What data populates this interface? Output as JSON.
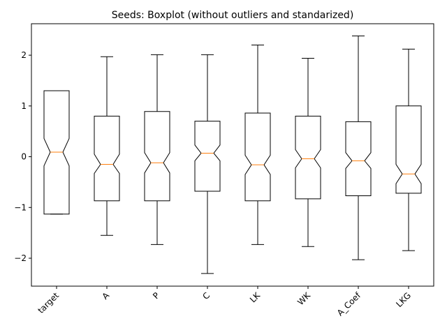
{
  "chart_data": {
    "type": "boxplot",
    "title": "Seeds: Boxplot (without outliers and standarized)",
    "xlabel": "",
    "ylabel": "",
    "notched": true,
    "show_outliers": false,
    "ylim": [
      -2.55,
      2.62
    ],
    "yticks": [
      -2,
      -1,
      0,
      1,
      2
    ],
    "ytick_labels": [
      "−2",
      "−1",
      "0",
      "1",
      "2"
    ],
    "xtick_rotation": 45,
    "categories": [
      "target",
      "A",
      "P",
      "C",
      "LK",
      "WK",
      "A_Coef",
      "LKG"
    ],
    "boxes": [
      {
        "whislo": -1.13,
        "q1": -1.13,
        "notch_lo": -0.18,
        "med": 0.09,
        "notch_hi": 0.36,
        "q3": 1.3,
        "whishi": 1.3
      },
      {
        "whislo": -1.55,
        "q1": -0.87,
        "notch_lo": -0.33,
        "med": -0.15,
        "notch_hi": 0.05,
        "q3": 0.8,
        "whishi": 1.97
      },
      {
        "whislo": -1.73,
        "q1": -0.87,
        "notch_lo": -0.32,
        "med": -0.12,
        "notch_hi": 0.08,
        "q3": 0.89,
        "whishi": 2.01
      },
      {
        "whislo": -2.3,
        "q1": -0.68,
        "notch_lo": -0.08,
        "med": 0.07,
        "notch_hi": 0.23,
        "q3": 0.7,
        "whishi": 2.01
      },
      {
        "whislo": -1.73,
        "q1": -0.87,
        "notch_lo": -0.35,
        "med": -0.16,
        "notch_hi": 0.03,
        "q3": 0.86,
        "whishi": 2.2
      },
      {
        "whislo": -1.77,
        "q1": -0.83,
        "notch_lo": -0.22,
        "med": -0.04,
        "notch_hi": 0.14,
        "q3": 0.8,
        "whishi": 1.94
      },
      {
        "whislo": -2.03,
        "q1": -0.77,
        "notch_lo": -0.23,
        "med": -0.08,
        "notch_hi": 0.08,
        "q3": 0.69,
        "whishi": 2.38
      },
      {
        "whislo": -1.85,
        "q1": -0.72,
        "notch_lo": -0.53,
        "med": -0.34,
        "notch_hi": -0.15,
        "q3": 1.0,
        "whishi": 2.12
      }
    ],
    "colors": {
      "box": "#000000",
      "median": "#ff7f0e",
      "background": "#ffffff"
    }
  }
}
